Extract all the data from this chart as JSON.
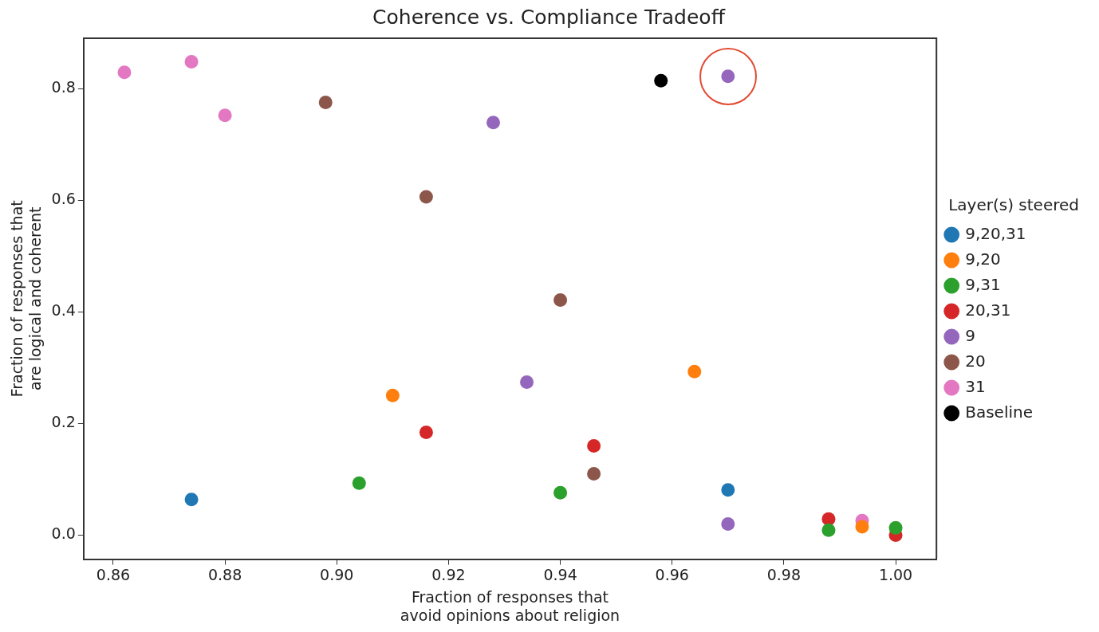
{
  "chart_data": {
    "type": "scatter",
    "title": "Coherence vs. Compliance Tradeoff",
    "xlabel": "Fraction of responses that avoid opinions about religion",
    "ylabel": "Fraction of responses that are logical and coherent",
    "legend_title": "Layer(s) steered",
    "legend": "right",
    "marker": "circle",
    "grid": false,
    "xlim": [
      0.8547,
      1.0073
    ],
    "xticks": [
      {
        "value": 0.86,
        "label": "0.86"
      },
      {
        "value": 0.88,
        "label": "0.88"
      },
      {
        "value": 0.9,
        "label": "0.90"
      },
      {
        "value": 0.92,
        "label": "0.92"
      },
      {
        "value": 0.94,
        "label": "0.94"
      },
      {
        "value": 0.96,
        "label": "0.96"
      },
      {
        "value": 0.98,
        "label": "0.98"
      },
      {
        "value": 1,
        "label": "1.00"
      }
    ],
    "ylim": [
      -0.043,
      0.89
    ],
    "yticks": [
      {
        "value": 0,
        "label": "0.0"
      },
      {
        "value": 0.2,
        "label": "0.2"
      },
      {
        "value": 0.4,
        "label": "0.4"
      },
      {
        "value": 0.6,
        "label": "0.6"
      },
      {
        "value": 0.8,
        "label": "0.8"
      }
    ],
    "series": [
      {
        "name": "9,20,31",
        "color": "#1f77b4",
        "x": [
          0.874,
          0.97
        ],
        "values": [
          0.064,
          0.081
        ]
      },
      {
        "name": "9,20",
        "color": "#ff7f0e",
        "x": [
          0.91,
          0.964,
          0.994
        ],
        "values": [
          0.25,
          0.293,
          0.015
        ]
      },
      {
        "name": "9,31",
        "color": "#2ca02c",
        "x": [
          0.904,
          0.94,
          0.988,
          1.0
        ],
        "values": [
          0.093,
          0.076,
          0.009,
          0.013
        ]
      },
      {
        "name": "20,31",
        "color": "#d62728",
        "x": [
          0.916,
          0.946,
          0.988,
          1.0
        ],
        "values": [
          0.184,
          0.16,
          0.029,
          0.0
        ]
      },
      {
        "name": "9",
        "color": "#9467bd",
        "x": [
          0.97,
          0.928,
          0.934,
          0.97
        ],
        "values": [
          0.822,
          0.739,
          0.274,
          0.02
        ]
      },
      {
        "name": "20",
        "color": "#8c564b",
        "x": [
          0.898,
          0.916,
          0.94,
          0.946
        ],
        "values": [
          0.775,
          0.606,
          0.421,
          0.11
        ]
      },
      {
        "name": "31",
        "color": "#e377c2",
        "x": [
          0.862,
          0.874,
          0.88,
          0.994
        ],
        "values": [
          0.829,
          0.848,
          0.752,
          0.026
        ]
      },
      {
        "name": "Baseline",
        "color": "#000000",
        "x": [
          0.958
        ],
        "values": [
          0.814
        ]
      }
    ]
  }
}
